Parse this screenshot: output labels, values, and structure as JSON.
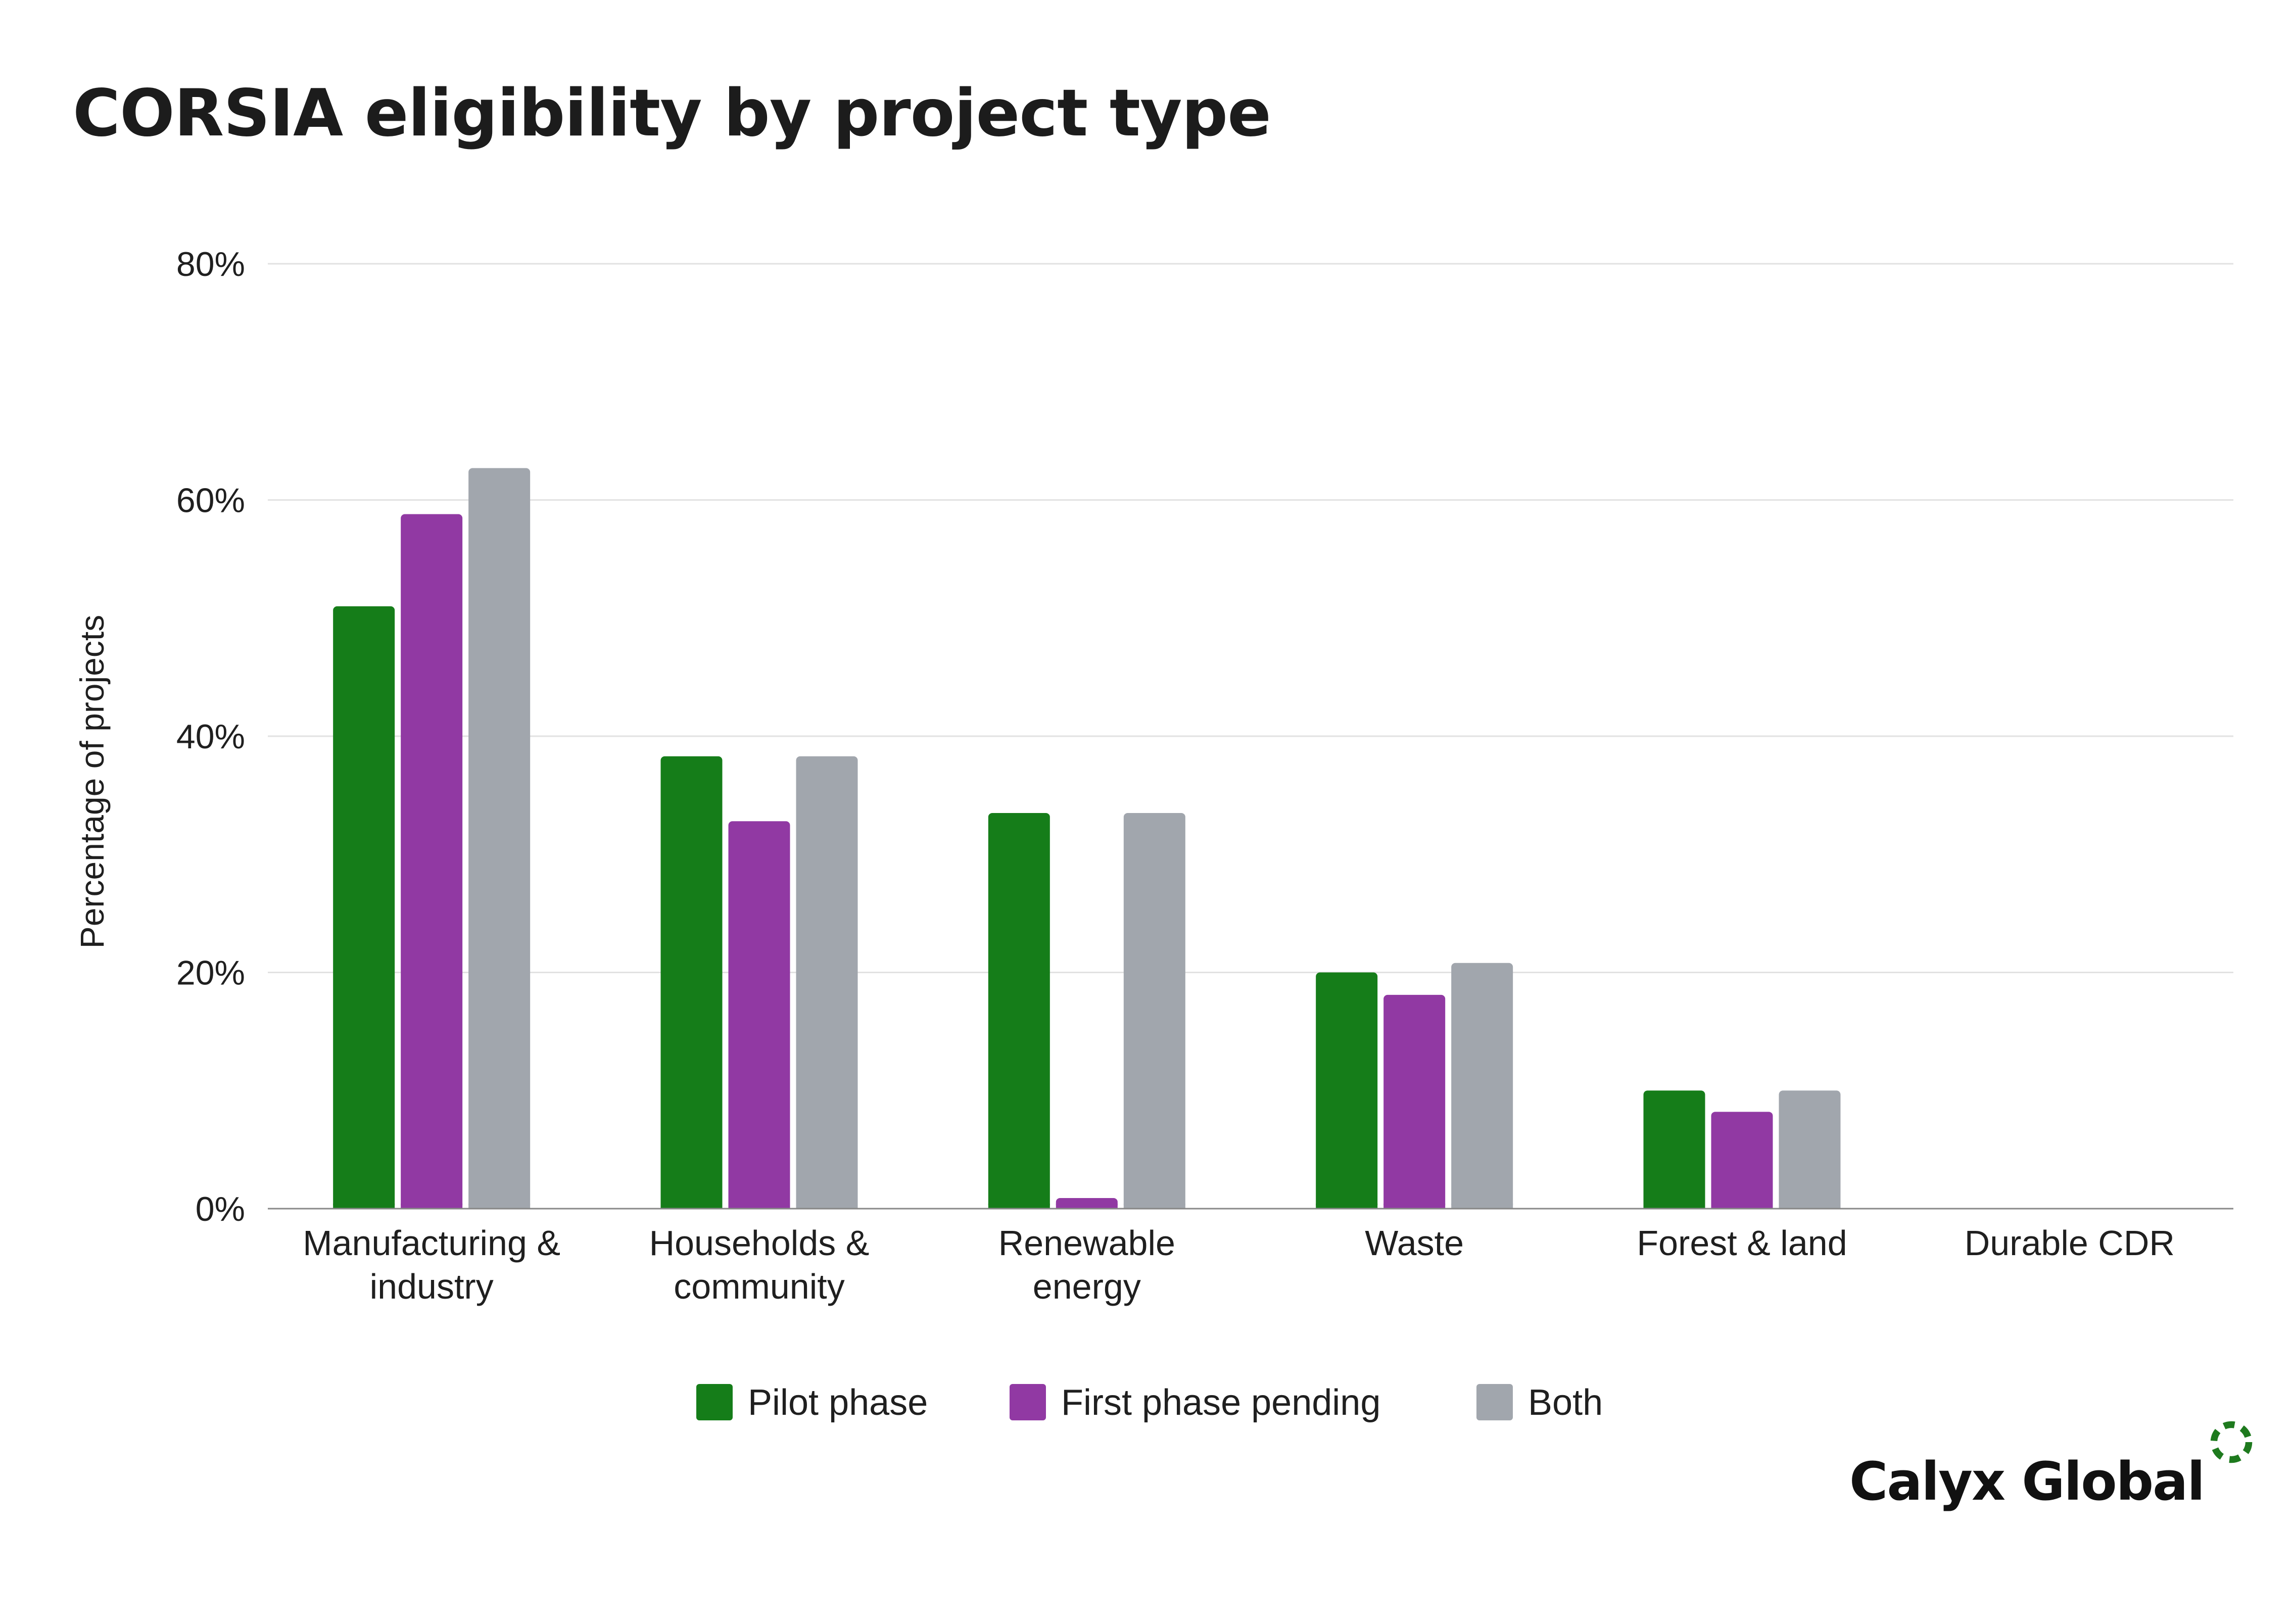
{
  "chart_data": {
    "type": "bar",
    "title": "CORSIA eligibility by project type",
    "xlabel": "",
    "ylabel": "Percentage of projects",
    "ylim": [
      0,
      80
    ],
    "yticks": [
      0,
      20,
      40,
      60,
      80
    ],
    "ytick_labels": [
      "0%",
      "20%",
      "40%",
      "60%",
      "80%"
    ],
    "grid": true,
    "legend_position": "bottom-center",
    "categories": [
      [
        "Manufacturing &",
        "industry"
      ],
      [
        "Households &",
        "community"
      ],
      [
        "Renewable",
        "energy"
      ],
      [
        "Waste"
      ],
      [
        "Forest & land"
      ],
      [
        "Durable CDR"
      ]
    ],
    "series": [
      {
        "name": "Pilot phase",
        "color": "#157d19",
        "values": [
          51,
          38.3,
          33.5,
          20,
          10,
          0
        ]
      },
      {
        "name": "First phase pending",
        "color": "#9139a3",
        "values": [
          58.8,
          32.8,
          0.9,
          18.1,
          8.2,
          0
        ]
      },
      {
        "name": "Both",
        "color": "#a1a6ad",
        "values": [
          62.7,
          38.3,
          33.5,
          20.8,
          10,
          0
        ]
      }
    ]
  },
  "branding": {
    "name": "Calyx Global",
    "icon": "dashed-circle-icon",
    "icon_color": "#1e7a1e"
  }
}
